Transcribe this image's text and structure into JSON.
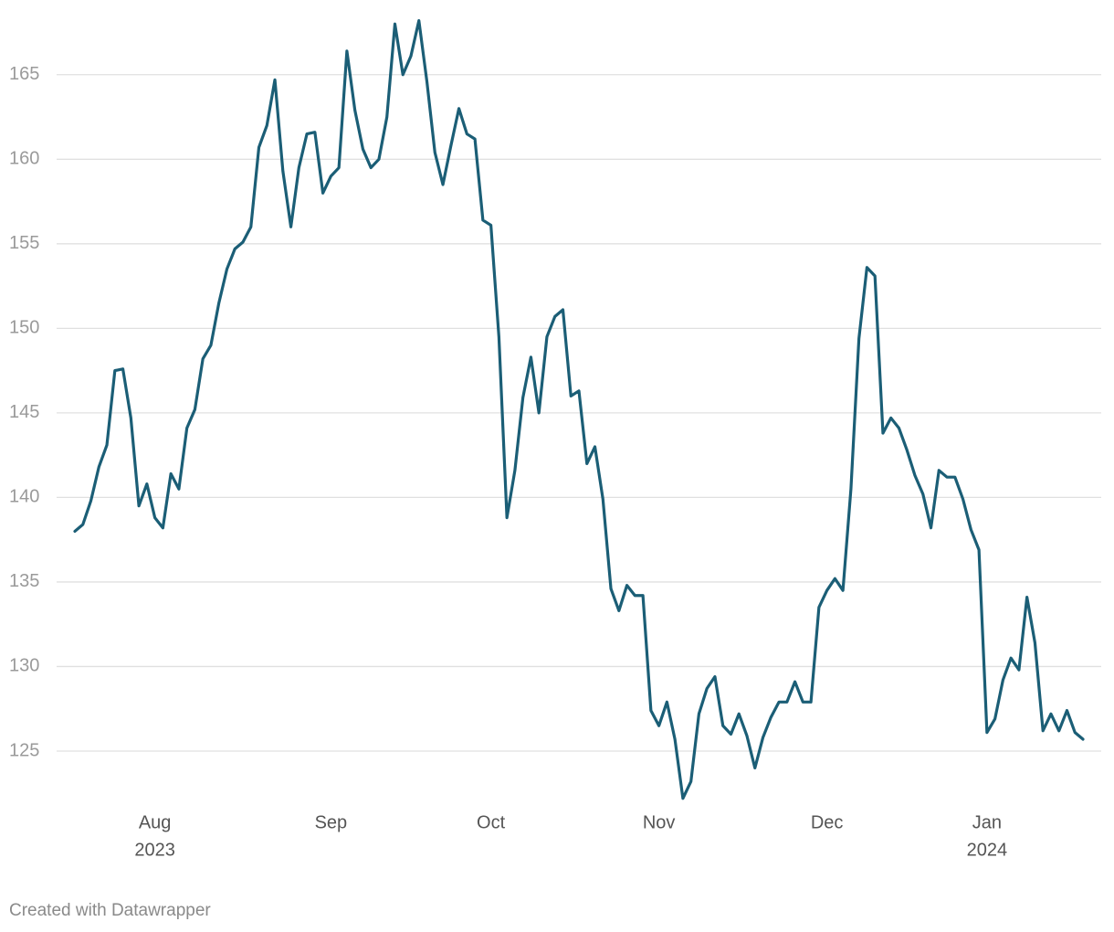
{
  "chart_data": {
    "type": "line",
    "credit": "Created with Datawrapper",
    "series": [
      {
        "color": "#1b5e76",
        "values": [
          138.0,
          138.4,
          139.8,
          141.8,
          143.1,
          147.5,
          147.6,
          144.7,
          139.5,
          140.8,
          138.8,
          138.2,
          141.4,
          140.5,
          144.1,
          145.2,
          148.2,
          149.0,
          151.5,
          153.5,
          154.7,
          155.1,
          156.0,
          160.7,
          162.0,
          164.7,
          159.3,
          156.0,
          159.5,
          161.5,
          161.6,
          158.0,
          159.0,
          159.5,
          166.4,
          162.9,
          160.6,
          159.5,
          160.0,
          162.5,
          168.0,
          165.0,
          166.1,
          168.2,
          164.6,
          160.4,
          158.5,
          160.8,
          163.0,
          161.5,
          161.2,
          156.4,
          156.1,
          149.5,
          138.8,
          141.6,
          145.9,
          148.3,
          145.0,
          149.5,
          150.7,
          151.1,
          146.0,
          146.3,
          142.0,
          143.0,
          139.9,
          134.6,
          133.3,
          134.8,
          134.2,
          134.2,
          127.4,
          126.5,
          127.9,
          125.7,
          122.2,
          123.2,
          127.2,
          128.7,
          129.4,
          126.5,
          126.0,
          127.2,
          125.9,
          124.0,
          125.8,
          127.0,
          127.9,
          127.9,
          129.1,
          127.9,
          127.9,
          133.5,
          134.5,
          135.2,
          134.5,
          140.5,
          149.4,
          153.6,
          153.1,
          143.8,
          144.7,
          144.1,
          142.8,
          141.3,
          140.2,
          138.2,
          141.6,
          141.2,
          141.2,
          139.9,
          138.1,
          136.9,
          126.1,
          126.9,
          129.2,
          130.5,
          129.8,
          134.1,
          131.4,
          126.2,
          127.2,
          126.2,
          127.4,
          126.1,
          125.7
        ]
      }
    ],
    "xlim": [
      0,
      126
    ],
    "xticks": [
      {
        "value": 10,
        "label": "Aug",
        "year": "2023"
      },
      {
        "value": 32,
        "label": "Sep"
      },
      {
        "value": 52,
        "label": "Oct"
      },
      {
        "value": 73,
        "label": "Nov"
      },
      {
        "value": 94,
        "label": "Dec"
      },
      {
        "value": 114,
        "label": "Jan",
        "year": "2024"
      }
    ],
    "ylim": [
      122,
      168.5
    ],
    "yticks": [
      125,
      130,
      135,
      140,
      145,
      150,
      155,
      160,
      165
    ],
    "grid": true
  }
}
